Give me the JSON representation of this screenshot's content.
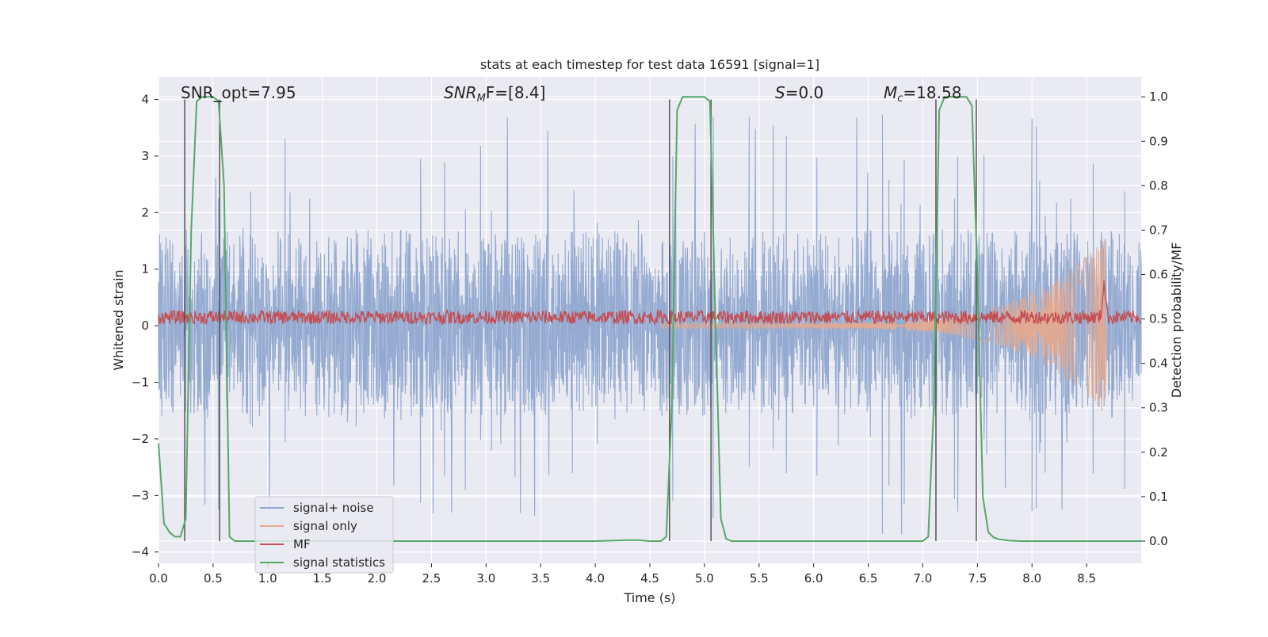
{
  "chart_data": {
    "type": "line",
    "title": "stats at each timestep for test data 16591 [signal=1]",
    "xlabel": "Time (s)",
    "ylabel": "Whitened strain",
    "y2label": "Detection probability/MF",
    "xlim": [
      0.0,
      9.0
    ],
    "ylim": [
      -4.2,
      4.4
    ],
    "y2lim": [
      -0.05,
      1.045
    ],
    "xticks": [
      "0.0",
      "0.5",
      "1.0",
      "1.5",
      "2.0",
      "2.5",
      "3.0",
      "3.5",
      "4.0",
      "4.5",
      "5.0",
      "5.5",
      "6.0",
      "6.5",
      "7.0",
      "7.5",
      "8.0",
      "8.5"
    ],
    "xtick_values": [
      0.0,
      0.5,
      1.0,
      1.5,
      2.0,
      2.5,
      3.0,
      3.5,
      4.0,
      4.5,
      5.0,
      5.5,
      6.0,
      6.5,
      7.0,
      7.5,
      8.0,
      8.5
    ],
    "yticks": [
      "4",
      "3",
      "2",
      "1",
      "0",
      "−1",
      "−2",
      "−3",
      "−4"
    ],
    "ytick_values": [
      4,
      3,
      2,
      1,
      0,
      -1,
      -2,
      -3,
      -4
    ],
    "y2ticks": [
      "1.0",
      "0.9",
      "0.8",
      "0.7",
      "0.6",
      "0.5",
      "0.4",
      "0.3",
      "0.2",
      "0.1",
      "0.0"
    ],
    "y2tick_values": [
      1.0,
      0.9,
      0.8,
      0.7,
      0.6,
      0.5,
      0.4,
      0.3,
      0.2,
      0.1,
      0.0
    ],
    "grid": true,
    "legend_position": "lower-left",
    "annotations": [
      {
        "text": "SNR_opt=7.95",
        "x": 0.2
      },
      {
        "main": "SNR",
        "sub": "M",
        "rest": "F=[8.4]",
        "x": 2.6
      },
      {
        "text": "S=0.0",
        "italic_prefix": "S",
        "rest": "=0.0",
        "x": 5.6
      },
      {
        "main": "M",
        "sub": "c",
        "rest": "=18.58",
        "x": 6.6
      }
    ],
    "series": [
      {
        "name": "signal+ noise",
        "color": "#8fa6cf",
        "axis": "left",
        "envelope": {
          "typical_band": [
            -1.6,
            1.7
          ],
          "peak_range": [
            -3.7,
            3.8
          ]
        }
      },
      {
        "name": "signal only",
        "color": "#e8a98c",
        "axis": "left",
        "envelope": {
          "start_amplitude": 0.05,
          "end_x": 8.67,
          "peak_amplitude": 1.6
        }
      },
      {
        "name": "MF",
        "color": "#c44e52",
        "axis": "left",
        "envelope": {
          "baseline": 0.15,
          "jitter": 0.12
        }
      },
      {
        "name": "signal statistics",
        "color": "#55a868",
        "axis": "right",
        "x": [
          0.0,
          0.05,
          0.1,
          0.15,
          0.2,
          0.25,
          0.3,
          0.35,
          0.4,
          0.45,
          0.5,
          0.55,
          0.6,
          0.65,
          0.7,
          0.75,
          0.8,
          1.0,
          1.5,
          2.0,
          2.5,
          3.0,
          3.5,
          4.0,
          4.3,
          4.4,
          4.5,
          4.6,
          4.65,
          4.7,
          4.75,
          4.8,
          4.9,
          5.0,
          5.05,
          5.1,
          5.15,
          5.2,
          5.25,
          5.5,
          6.0,
          6.5,
          7.0,
          7.05,
          7.1,
          7.15,
          7.2,
          7.25,
          7.3,
          7.4,
          7.45,
          7.5,
          7.55,
          7.6,
          7.65,
          7.7,
          7.8,
          7.9,
          8.0,
          8.5,
          9.0
        ],
        "y": [
          0.22,
          0.04,
          0.02,
          0.01,
          0.01,
          0.05,
          0.7,
          0.99,
          1.0,
          1.0,
          1.0,
          0.99,
          0.8,
          0.01,
          0.0,
          0.0,
          0.0,
          0.0,
          0.0,
          0.0,
          0.0,
          0.0,
          0.0,
          0.0,
          0.002,
          0.002,
          0.0,
          0.0,
          0.01,
          0.3,
          0.97,
          1.0,
          1.0,
          1.0,
          0.99,
          0.5,
          0.05,
          0.005,
          0.0,
          0.0,
          0.0,
          0.0,
          0.0,
          0.01,
          0.3,
          0.97,
          1.0,
          1.0,
          1.0,
          1.0,
          0.98,
          0.6,
          0.1,
          0.02,
          0.008,
          0.004,
          0.001,
          0.0,
          0.0,
          0.0,
          0.0
        ]
      }
    ],
    "vertical_markers": [
      {
        "x": 0.24,
        "top": 4.0
      },
      {
        "x": 0.56,
        "top": 4.0
      },
      {
        "x": 4.68,
        "top": 4.0
      },
      {
        "x": 5.06,
        "top": 4.0
      },
      {
        "x": 7.12,
        "top": 4.0
      },
      {
        "x": 7.49,
        "top": 4.0
      }
    ]
  }
}
